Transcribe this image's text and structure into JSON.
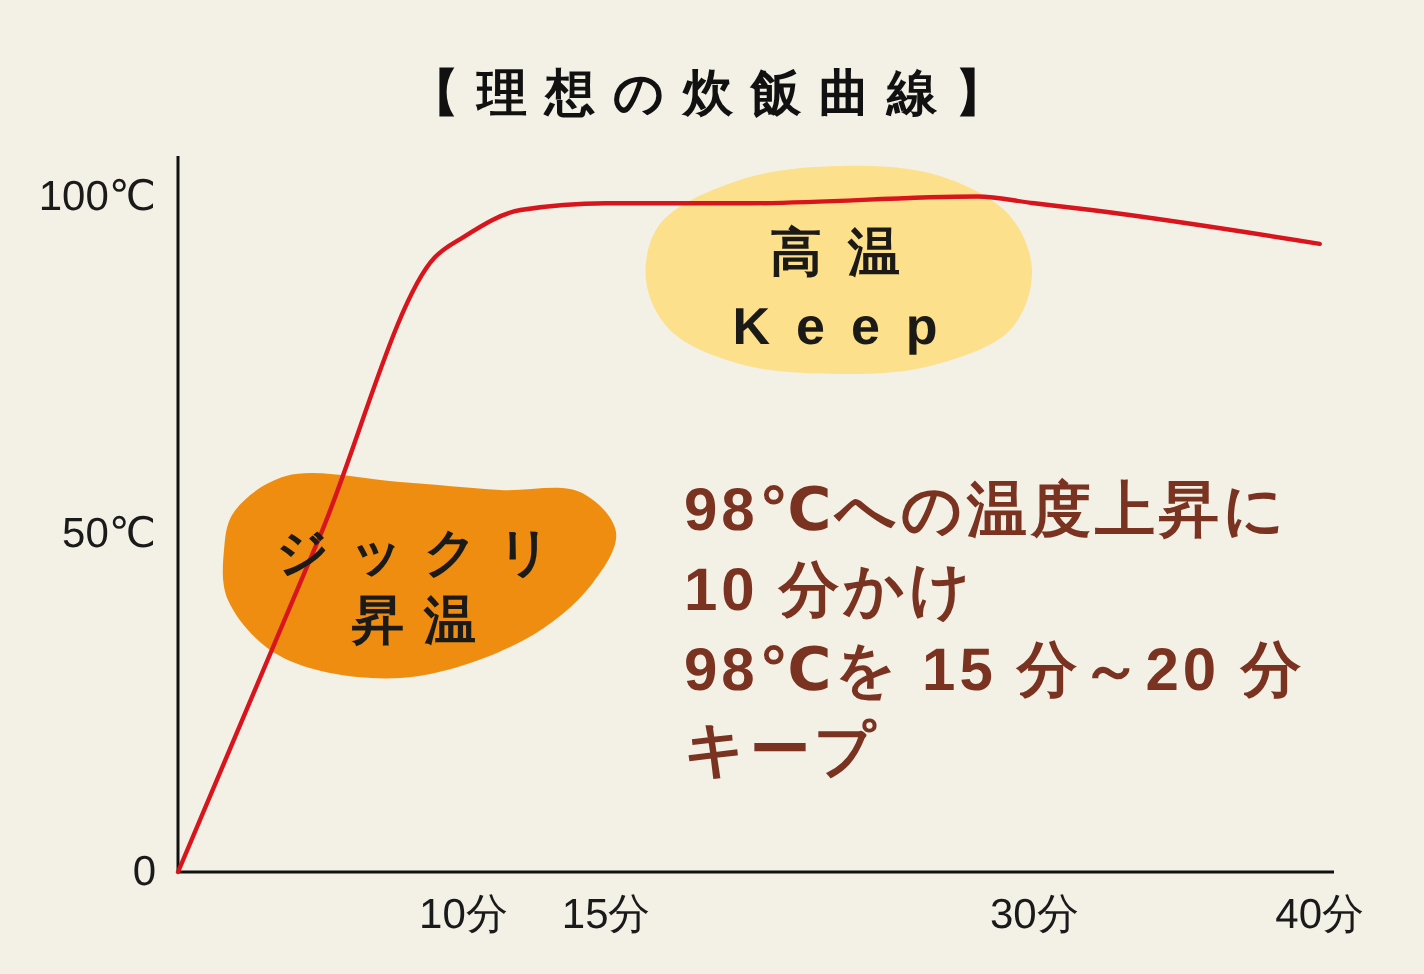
{
  "chart_data": {
    "type": "line",
    "title": "【理想の炊飯曲線】",
    "x": [
      0,
      5,
      9,
      10,
      12,
      15,
      20,
      28,
      30,
      32,
      40
    ],
    "series": [
      {
        "color": "#d8141c",
        "values": [
          0,
          50,
          91,
          94,
          98,
          99,
          99,
          100,
          99,
          98,
          93
        ]
      }
    ],
    "xlim": [
      0,
      40.5
    ],
    "ylim": [
      0,
      106
    ],
    "xticks": [
      {
        "value": 10,
        "label": "10分"
      },
      {
        "value": 15,
        "label": "15分"
      },
      {
        "value": 30,
        "label": "30分"
      },
      {
        "value": 40,
        "label": "40分"
      }
    ],
    "yticks": [
      {
        "value": 0,
        "label": "0"
      },
      {
        "value": 50,
        "label": "50℃"
      },
      {
        "value": 100,
        "label": "100℃"
      }
    ],
    "line_style": "solid",
    "annotations": [
      "ジックリ昇温",
      "高温\nKeep",
      "98℃への温度上昇に\n10 分かけ\n98℃を 15 分～20 分キープ"
    ]
  }
}
